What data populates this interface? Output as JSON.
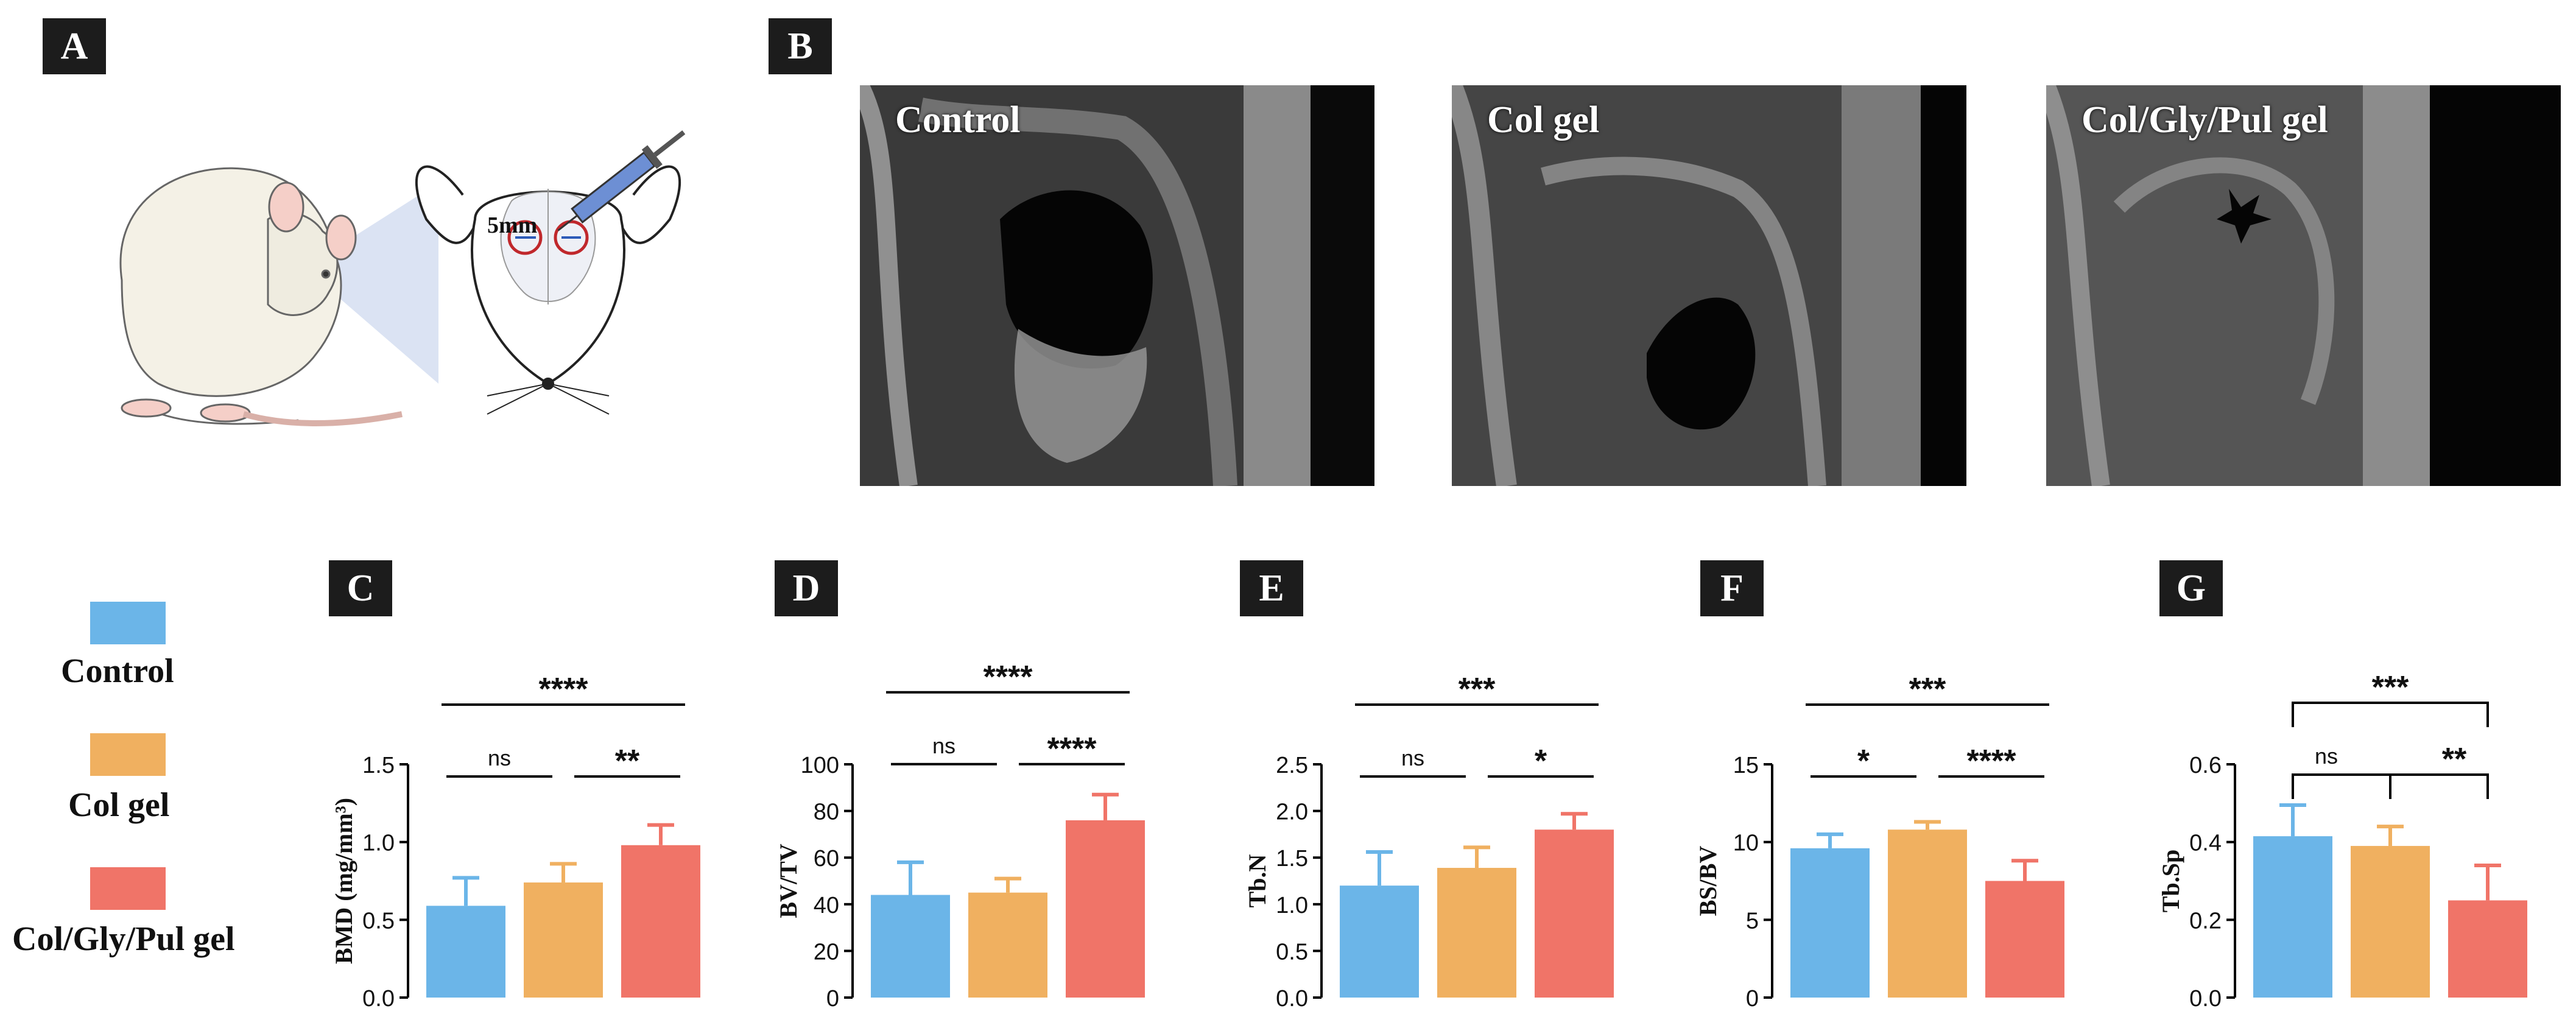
{
  "panels": {
    "A": "A",
    "B": "B",
    "C": "C",
    "D": "D",
    "E": "E",
    "F": "F",
    "G": "G"
  },
  "illustration": {
    "distance_label": "5mm",
    "icons": [
      "rat-icon",
      "mouse-head-icon",
      "syringe-icon"
    ]
  },
  "micro_ct": [
    {
      "label": "Control"
    },
    {
      "label": "Col gel"
    },
    {
      "label": "Col/Gly/Pul gel"
    }
  ],
  "legend": {
    "items": [
      {
        "label": "Control",
        "color": "#6bb5e8"
      },
      {
        "label": "Col gel",
        "color": "#f0b060"
      },
      {
        "label": "Col/Gly/Pul gel",
        "color": "#f07468"
      }
    ]
  },
  "chart_data": [
    {
      "panel": "C",
      "type": "bar",
      "categories": [
        "Control",
        "Col gel",
        "Col/Gly/Pul gel"
      ],
      "values": [
        0.59,
        0.74,
        0.98
      ],
      "errors": [
        0.18,
        0.12,
        0.13
      ],
      "ylabel": "BMD (mg/mm³)",
      "ylim": [
        0,
        1.5
      ],
      "yticks": [
        "0.0",
        "0.5",
        "1.0",
        "1.5"
      ],
      "ytick_values": [
        0,
        0.5,
        1.0,
        1.5
      ],
      "comparisons": [
        {
          "from": 1,
          "to": 2,
          "label": "**",
          "level": 1
        },
        {
          "from": 0,
          "to": 1,
          "label": "ns",
          "level": 1
        },
        {
          "from": 0,
          "to": 2,
          "label": "****",
          "level": 2
        }
      ]
    },
    {
      "panel": "D",
      "type": "bar",
      "categories": [
        "Control",
        "Col gel",
        "Col/Gly/Pul gel"
      ],
      "values": [
        44,
        45,
        76
      ],
      "errors": [
        14,
        6,
        11
      ],
      "ylabel": "BV/TV",
      "ylim": [
        0,
        100
      ],
      "yticks": [
        "0",
        "20",
        "40",
        "60",
        "80",
        "100"
      ],
      "ytick_values": [
        0,
        20,
        40,
        60,
        80,
        100
      ],
      "comparisons": [
        {
          "from": 0,
          "to": 1,
          "label": "ns",
          "level": 1
        },
        {
          "from": 1,
          "to": 2,
          "label": "****",
          "level": 1
        },
        {
          "from": 0,
          "to": 2,
          "label": "****",
          "level": 2
        }
      ]
    },
    {
      "panel": "E",
      "type": "bar",
      "categories": [
        "Control",
        "Col gel",
        "Col/Gly/Pul gel"
      ],
      "values": [
        1.2,
        1.39,
        1.8
      ],
      "errors": [
        0.36,
        0.22,
        0.17
      ],
      "ylabel": "Tb.N",
      "ylim": [
        0,
        2.5
      ],
      "yticks": [
        "0.0",
        "0.5",
        "1.0",
        "1.5",
        "2.0",
        "2.5"
      ],
      "ytick_values": [
        0,
        0.5,
        1.0,
        1.5,
        2.0,
        2.5
      ],
      "comparisons": [
        {
          "from": 0,
          "to": 1,
          "label": "ns",
          "level": 1
        },
        {
          "from": 1,
          "to": 2,
          "label": "*",
          "level": 1
        },
        {
          "from": 0,
          "to": 2,
          "label": "***",
          "level": 2
        }
      ]
    },
    {
      "panel": "F",
      "type": "bar",
      "categories": [
        "Control",
        "Col gel",
        "Col/Gly/Pul gel"
      ],
      "values": [
        9.6,
        10.8,
        7.5
      ],
      "errors": [
        0.9,
        0.5,
        1.3
      ],
      "ylabel": "BS/BV",
      "ylim": [
        0,
        15
      ],
      "yticks": [
        "0",
        "5",
        "10",
        "15"
      ],
      "ytick_values": [
        0,
        5,
        10,
        15
      ],
      "comparisons": [
        {
          "from": 0,
          "to": 1,
          "label": "*",
          "level": 1
        },
        {
          "from": 1,
          "to": 2,
          "label": "****",
          "level": 1
        },
        {
          "from": 0,
          "to": 2,
          "label": "***",
          "level": 2
        }
      ]
    },
    {
      "panel": "G",
      "type": "bar",
      "categories": [
        "Control",
        "Col gel",
        "Col/Gly/Pul gel"
      ],
      "values": [
        0.415,
        0.39,
        0.25
      ],
      "errors": [
        0.08,
        0.05,
        0.09
      ],
      "ylabel": "Tb.Sp",
      "ylim": [
        0,
        0.6
      ],
      "yticks": [
        "0.0",
        "0.2",
        "0.4",
        "0.6"
      ],
      "ytick_values": [
        0,
        0.2,
        0.4,
        0.6
      ],
      "comparisons": [
        {
          "from": 0,
          "to": 1,
          "label": "ns",
          "level": 1,
          "style": "bracket"
        },
        {
          "from": 1,
          "to": 2,
          "label": "**",
          "level": 1,
          "style": "bracket"
        },
        {
          "from": 0,
          "to": 2,
          "label": "***",
          "level": 2,
          "style": "bracket"
        }
      ]
    }
  ]
}
